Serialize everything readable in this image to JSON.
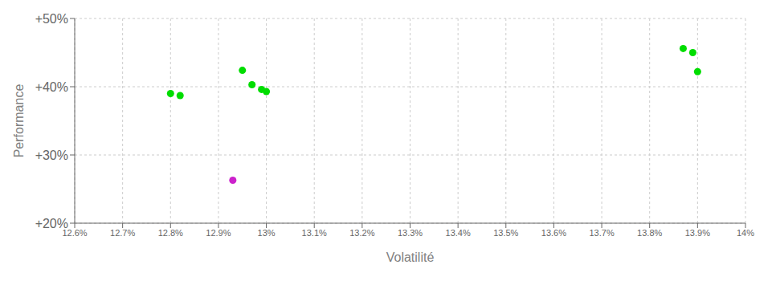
{
  "chart_data": {
    "type": "scatter",
    "xlabel": "Volatilité",
    "ylabel": "Performance",
    "xlim": [
      0.126,
      0.14
    ],
    "ylim": [
      0.2,
      0.5
    ],
    "xticks": [
      {
        "value": 0.126,
        "label": "12.6%"
      },
      {
        "value": 0.127,
        "label": "12.7%"
      },
      {
        "value": 0.128,
        "label": "12.8%"
      },
      {
        "value": 0.129,
        "label": "12.9%"
      },
      {
        "value": 0.13,
        "label": "13%"
      },
      {
        "value": 0.131,
        "label": "13.1%"
      },
      {
        "value": 0.132,
        "label": "13.2%"
      },
      {
        "value": 0.133,
        "label": "13.3%"
      },
      {
        "value": 0.134,
        "label": "13.4%"
      },
      {
        "value": 0.135,
        "label": "13.5%"
      },
      {
        "value": 0.136,
        "label": "13.6%"
      },
      {
        "value": 0.137,
        "label": "13.7%"
      },
      {
        "value": 0.138,
        "label": "13.8%"
      },
      {
        "value": 0.139,
        "label": "13.9%"
      },
      {
        "value": 0.14,
        "label": "14%"
      }
    ],
    "yticks": [
      {
        "value": 0.2,
        "label": "+20%"
      },
      {
        "value": 0.3,
        "label": "+30%"
      },
      {
        "value": 0.4,
        "label": "+40%"
      },
      {
        "value": 0.5,
        "label": "+50%"
      }
    ],
    "grid": true,
    "series": [
      {
        "color": "#00dd00",
        "x": [
          0.128,
          0.1282,
          0.1295,
          0.1297,
          0.1299,
          0.13,
          0.1387,
          0.1389,
          0.139
        ],
        "values": [
          0.39,
          0.387,
          0.424,
          0.403,
          0.396,
          0.393,
          0.456,
          0.45,
          0.422
        ]
      },
      {
        "color": "#cc22cc",
        "x": [
          0.1293
        ],
        "values": [
          0.263
        ]
      }
    ]
  }
}
